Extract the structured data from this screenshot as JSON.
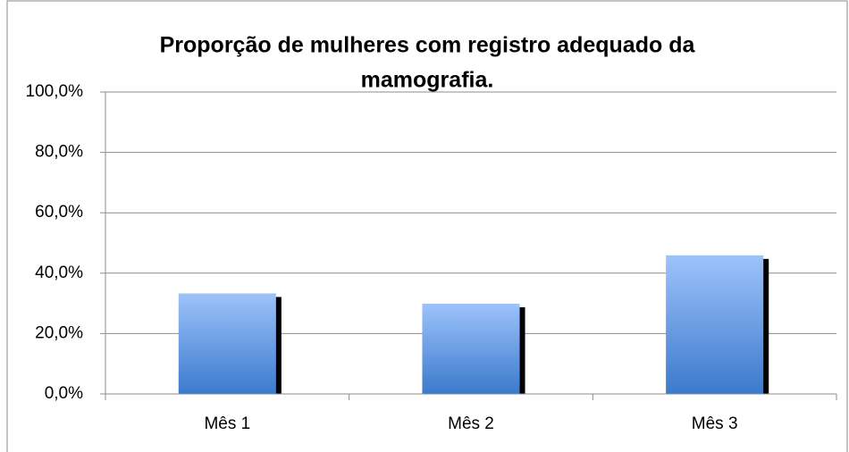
{
  "chart_data": {
    "type": "bar",
    "title": [
      "Proporção de mulheres com registro adequado da",
      "mamografia."
    ],
    "categories": [
      "Mês 1",
      "Mês 2",
      "Mês 3"
    ],
    "values": [
      33.3,
      29.9,
      45.9
    ],
    "color": "#4a86d6",
    "ylim": [
      0,
      100
    ],
    "yticks": [
      {
        "value": 0,
        "label": "0,0%"
      },
      {
        "value": 20,
        "label": "20,0%"
      },
      {
        "value": 40,
        "label": "40,0%"
      },
      {
        "value": 60,
        "label": "60,0%"
      },
      {
        "value": 80,
        "label": "80,0%"
      },
      {
        "value": 100,
        "label": "100,0%"
      }
    ],
    "grid": true
  }
}
